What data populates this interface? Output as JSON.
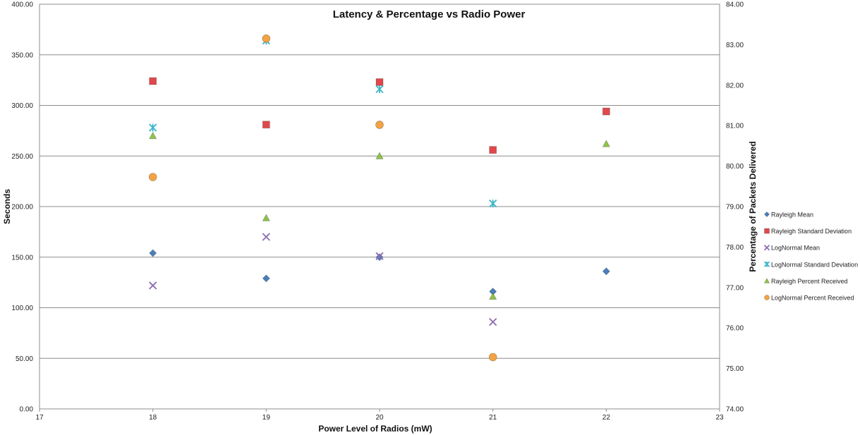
{
  "chart_data": {
    "type": "scatter",
    "title": "Latency & Percentage vs Radio Power",
    "xlabel": "Power Level of Radios (mW)",
    "ylabel": "Seconds",
    "y2label": "Percentage of Packets Delivered",
    "xlim": [
      17,
      23
    ],
    "ylim": [
      0,
      400
    ],
    "y2lim": [
      74,
      84
    ],
    "x_ticks": [
      "17",
      "18",
      "19",
      "20",
      "21",
      "22",
      "23"
    ],
    "y_ticks": [
      "0.00",
      "50.00",
      "100.00",
      "150.00",
      "200.00",
      "250.00",
      "300.00",
      "350.00",
      "400.00"
    ],
    "y2_ticks": [
      "74.00",
      "75.00",
      "76.00",
      "77.00",
      "78.00",
      "79.00",
      "80.00",
      "81.00",
      "82.00",
      "83.00",
      "84.00"
    ],
    "grid": "horizontal",
    "legend_position": "right",
    "series": [
      {
        "name": "Rayleigh Mean",
        "axis": "left",
        "marker": "diamond",
        "color": "#4a7ebb",
        "points": [
          [
            18,
            154
          ],
          [
            19,
            129
          ],
          [
            20,
            150
          ],
          [
            21,
            116
          ],
          [
            22,
            136
          ]
        ]
      },
      {
        "name": "Rayleigh Standard Deviation",
        "axis": "left",
        "marker": "square",
        "color": "#e0484b",
        "points": [
          [
            18,
            324
          ],
          [
            19,
            281
          ],
          [
            20,
            323
          ],
          [
            21,
            256
          ],
          [
            22,
            294
          ]
        ]
      },
      {
        "name": "LogNormal Mean",
        "axis": "left",
        "marker": "x",
        "color": "#8e6bb0",
        "points": [
          [
            18,
            122
          ],
          [
            19,
            170
          ],
          [
            20,
            151
          ],
          [
            21,
            86
          ]
        ]
      },
      {
        "name": "LogNormal Standard Deviation",
        "axis": "left",
        "marker": "star",
        "color": "#3cb6c8",
        "points": [
          [
            18,
            278
          ],
          [
            19,
            364
          ],
          [
            20,
            316
          ],
          [
            21,
            203
          ]
        ]
      },
      {
        "name": "Rayleigh Percent Received",
        "axis": "right",
        "marker": "triangle",
        "color": "#8ec24a",
        "points": [
          [
            18,
            80.75
          ],
          [
            19,
            78.72
          ],
          [
            20,
            80.25
          ],
          [
            21,
            76.78
          ],
          [
            22,
            80.55
          ]
        ]
      },
      {
        "name": "LogNormal Percent Received",
        "axis": "right",
        "marker": "circle",
        "color": "#f3a345",
        "points": [
          [
            18,
            79.73
          ],
          [
            19,
            83.15
          ],
          [
            20,
            81.02
          ],
          [
            21,
            75.28
          ]
        ]
      }
    ]
  }
}
